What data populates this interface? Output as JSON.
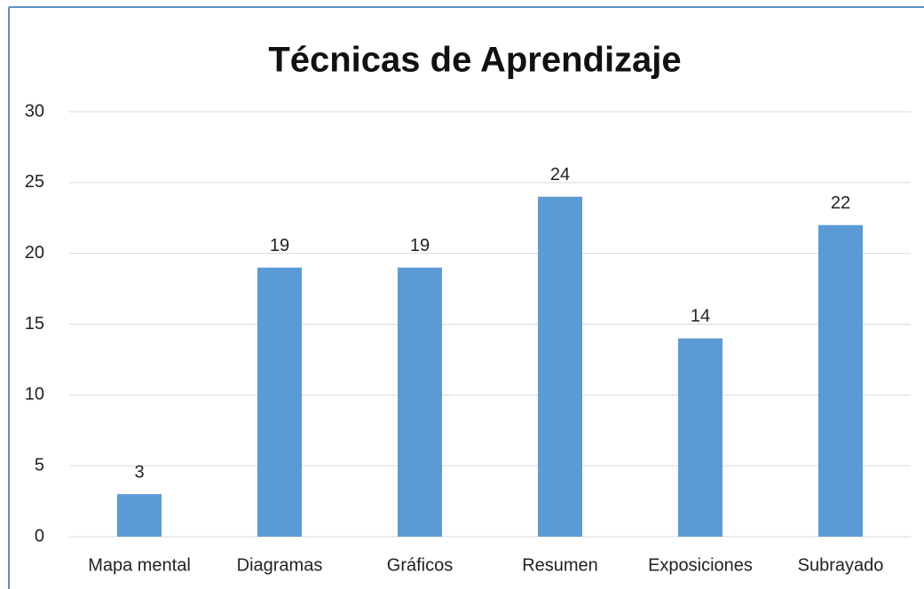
{
  "chart_data": {
    "type": "bar",
    "title": "Técnicas de Aprendizaje",
    "categories": [
      "Mapa mental",
      "Diagramas",
      "Gráficos",
      "Resumen",
      "Exposiciones",
      "Subrayado"
    ],
    "values": [
      3,
      19,
      19,
      24,
      14,
      22
    ],
    "color": "#5b9bd5",
    "ylim": [
      0,
      30
    ],
    "yticks": [
      0,
      5,
      10,
      15,
      20,
      25,
      30
    ],
    "grid": true
  }
}
